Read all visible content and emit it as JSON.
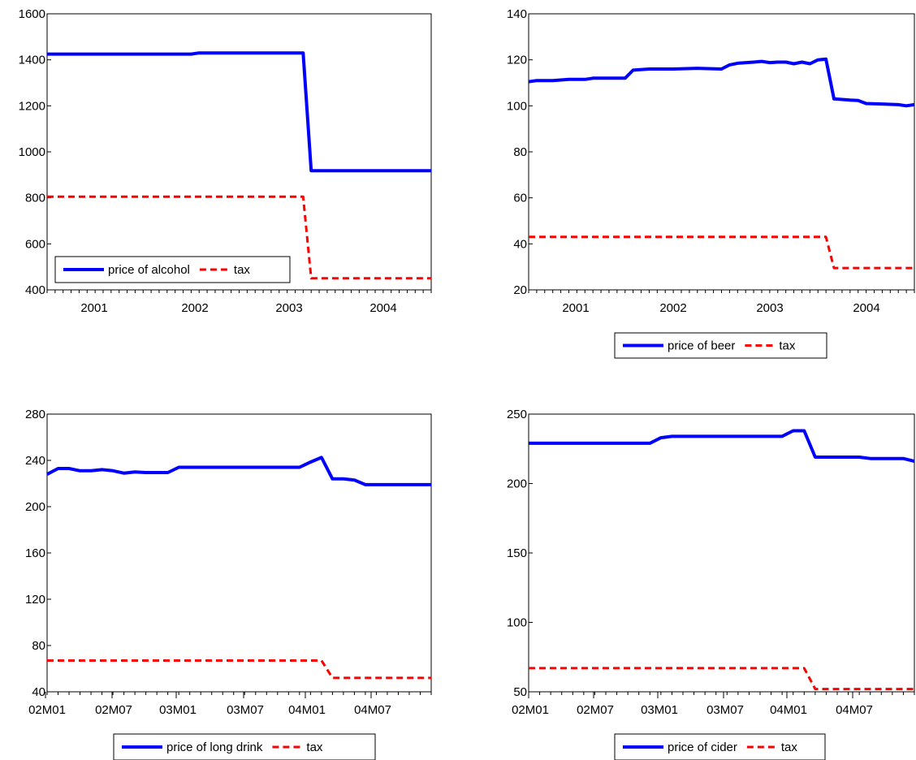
{
  "colors": {
    "price": "#0000ff",
    "tax": "#ff0000",
    "axis": "#000000"
  },
  "chart_data": [
    {
      "type": "line",
      "x_type": "month_index",
      "x_start": "2000M12",
      "x_end": "2004M12",
      "xtick_labels": [
        "2001",
        "2002",
        "2003",
        "2004"
      ],
      "ylim": [
        400,
        1600
      ],
      "yticks": [
        "400",
        "600",
        "800",
        "1000",
        "1200",
        "1400",
        "1600"
      ],
      "legend_position": "inside-bottom-left",
      "series": [
        {
          "name": "price of alcohol",
          "style": "solid",
          "points": [
            [
              "2000M12",
              1425
            ],
            [
              "2002M06",
              1425
            ],
            [
              "2002M07",
              1430
            ],
            [
              "2003M08",
              1430
            ],
            [
              "2003M09",
              918
            ],
            [
              "2004M12",
              918
            ]
          ]
        },
        {
          "name": "tax",
          "style": "dashed",
          "points": [
            [
              "2000M12",
              805
            ],
            [
              "2003M08",
              805
            ],
            [
              "2003M09",
              450
            ],
            [
              "2004M12",
              450
            ]
          ]
        }
      ]
    },
    {
      "type": "line",
      "x_type": "month_index",
      "x_start": "2000M12",
      "x_end": "2004M12",
      "xtick_labels": [
        "2001",
        "2002",
        "2003",
        "2004"
      ],
      "ylim": [
        20,
        140
      ],
      "yticks": [
        "20",
        "40",
        "60",
        "80",
        "100",
        "120",
        "140"
      ],
      "legend_position": "below",
      "series": [
        {
          "name": "price of beer",
          "style": "solid",
          "points": [
            [
              "2000M12",
              110.5
            ],
            [
              "2001M01",
              111
            ],
            [
              "2001M03",
              111
            ],
            [
              "2001M05",
              111.5
            ],
            [
              "2001M07",
              111.5
            ],
            [
              "2001M08",
              112
            ],
            [
              "2001M12",
              112
            ],
            [
              "2002M01",
              115.5
            ],
            [
              "2002M03",
              116
            ],
            [
              "2002M06",
              116
            ],
            [
              "2002M09",
              116.3
            ],
            [
              "2002M12",
              116
            ],
            [
              "2003M01",
              117.8
            ],
            [
              "2003M02",
              118.5
            ],
            [
              "2003M04",
              119
            ],
            [
              "2003M05",
              119.3
            ],
            [
              "2003M06",
              118.8
            ],
            [
              "2003M07",
              119
            ],
            [
              "2003M08",
              119
            ],
            [
              "2003M09",
              118.3
            ],
            [
              "2003M10",
              119
            ],
            [
              "2003M11",
              118.3
            ],
            [
              "2003M12",
              120
            ],
            [
              "2004M01",
              120.3
            ],
            [
              "2004M02",
              103
            ],
            [
              "2004M04",
              102.5
            ],
            [
              "2004M05",
              102.3
            ],
            [
              "2004M06",
              101
            ],
            [
              "2004M08",
              100.8
            ],
            [
              "2004M10",
              100.5
            ],
            [
              "2004M11",
              100
            ],
            [
              "2004M12",
              100.5
            ]
          ]
        },
        {
          "name": "tax",
          "style": "dashed",
          "points": [
            [
              "2000M12",
              43
            ],
            [
              "2004M01",
              43
            ],
            [
              "2004M02",
              29.5
            ],
            [
              "2004M12",
              29.5
            ]
          ]
        }
      ]
    },
    {
      "type": "line",
      "x_type": "month_index",
      "x_start": "2002M01",
      "x_end": "2004M12",
      "xtick_labels": [
        "02M01",
        "02M07",
        "03M01",
        "03M07",
        "04M01",
        "04M07"
      ],
      "ylim": [
        40,
        280
      ],
      "yticks": [
        "40",
        "80",
        "120",
        "160",
        "200",
        "240",
        "280"
      ],
      "legend_position": "below",
      "series": [
        {
          "name": "price of long drink",
          "style": "solid",
          "points": [
            [
              "2002M01",
              228
            ],
            [
              "2002M02",
              233
            ],
            [
              "2002M03",
              233
            ],
            [
              "2002M04",
              231
            ],
            [
              "2002M05",
              231
            ],
            [
              "2002M06",
              232
            ],
            [
              "2002M07",
              231
            ],
            [
              "2002M08",
              229
            ],
            [
              "2002M09",
              230
            ],
            [
              "2002M10",
              229.5
            ],
            [
              "2002M12",
              229.5
            ],
            [
              "2003M01",
              234
            ],
            [
              "2003M12",
              234
            ],
            [
              "2004M01",
              238.5
            ],
            [
              "2004M02",
              242.5
            ],
            [
              "2004M03",
              224
            ],
            [
              "2004M04",
              224
            ],
            [
              "2004M05",
              223
            ],
            [
              "2004M06",
              219
            ],
            [
              "2004M12",
              219
            ]
          ]
        },
        {
          "name": "tax",
          "style": "dashed",
          "points": [
            [
              "2002M01",
              67
            ],
            [
              "2004M02",
              67
            ],
            [
              "2004M03",
              52
            ],
            [
              "2004M12",
              52
            ]
          ]
        }
      ]
    },
    {
      "type": "line",
      "x_type": "month_index",
      "x_start": "2002M01",
      "x_end": "2004M12",
      "xtick_labels": [
        "02M01",
        "02M07",
        "03M01",
        "03M07",
        "04M01",
        "04M07"
      ],
      "ylim": [
        50,
        250
      ],
      "yticks": [
        "50",
        "100",
        "150",
        "200",
        "250"
      ],
      "legend_position": "below",
      "series": [
        {
          "name": "price of cider",
          "style": "solid",
          "points": [
            [
              "2002M01",
              229
            ],
            [
              "2002M12",
              229
            ],
            [
              "2003M01",
              233
            ],
            [
              "2003M02",
              234
            ],
            [
              "2003M12",
              234
            ],
            [
              "2004M01",
              238
            ],
            [
              "2004M02",
              238
            ],
            [
              "2004M03",
              219
            ],
            [
              "2004M07",
              219
            ],
            [
              "2004M08",
              218
            ],
            [
              "2004M11",
              218
            ],
            [
              "2004M12",
              216
            ]
          ]
        },
        {
          "name": "tax",
          "style": "dashed",
          "points": [
            [
              "2002M01",
              67
            ],
            [
              "2004M02",
              67
            ],
            [
              "2004M03",
              52
            ],
            [
              "2004M12",
              52
            ]
          ]
        }
      ]
    }
  ]
}
